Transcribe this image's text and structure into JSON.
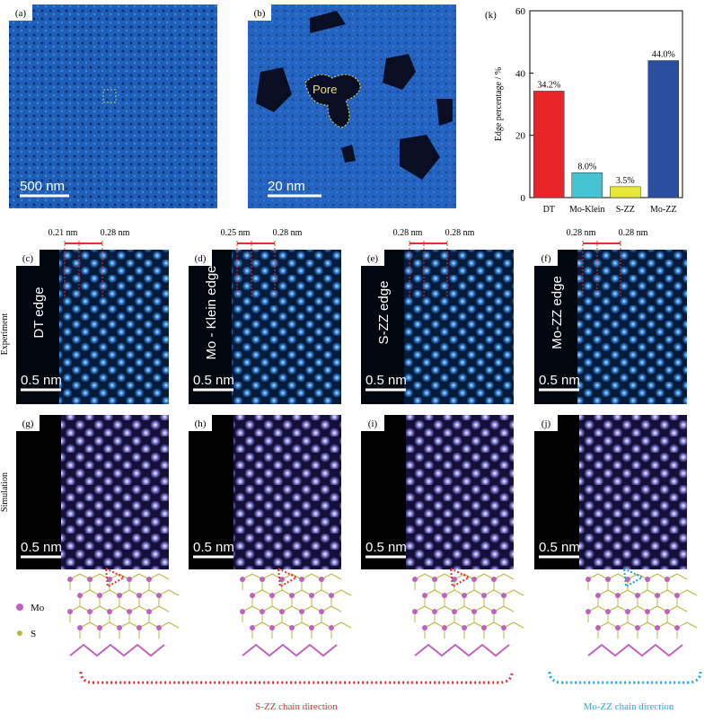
{
  "top_panels": [
    {
      "label": "(a)",
      "scale_bar": "500 nm"
    },
    {
      "label": "(b)",
      "scale_bar": "20 nm",
      "annotation": "Pore"
    }
  ],
  "row_labels": [
    "Experiment",
    "Simulation"
  ],
  "experiment_panels": [
    {
      "label": "(c)",
      "edge": "DT edge",
      "scale_bar": "0.5 nm",
      "spacings": [
        "0.21 nm",
        "0.28 nm"
      ]
    },
    {
      "label": "(d)",
      "edge": "Mo - Klein edge",
      "scale_bar": "0.5 nm",
      "spacings": [
        "0.25 nm",
        "0.28 nm"
      ]
    },
    {
      "label": "(e)",
      "edge": "S-ZZ edge",
      "scale_bar": "0.5 nm",
      "spacings": [
        "0.28 nm",
        "0.28 nm"
      ]
    },
    {
      "label": "(f)",
      "edge": "Mo-ZZ edge",
      "scale_bar": "0.5 nm",
      "spacings": [
        "0.28 nm",
        "0.28 nm"
      ]
    }
  ],
  "simulation_panels": [
    {
      "label": "(g)",
      "scale_bar": "0.5 nm"
    },
    {
      "label": "(h)",
      "scale_bar": "0.5 nm"
    },
    {
      "label": "(i)",
      "scale_bar": "0.5 nm"
    },
    {
      "label": "(j)",
      "scale_bar": "0.5 nm"
    }
  ],
  "legend": [
    "Mo",
    "S"
  ],
  "directions": [
    "S-ZZ chain direction",
    "Mo-ZZ chain direction"
  ],
  "chart_data": {
    "type": "bar",
    "panel_label": "(k)",
    "ylabel": "Edge percentage / %",
    "categories": [
      "DT",
      "Mo-Klein",
      "S-ZZ",
      "Mo-ZZ"
    ],
    "values": [
      34.2,
      8.0,
      3.5,
      44.0
    ],
    "value_labels": [
      "34.2%",
      "8.0%",
      "3.5%",
      "44.0%"
    ],
    "colors": [
      "#e8262a",
      "#44c4d2",
      "#e6e63c",
      "#2a4fa0"
    ],
    "ylim": [
      0,
      60
    ],
    "yticks": [
      0,
      20,
      40,
      60
    ]
  }
}
